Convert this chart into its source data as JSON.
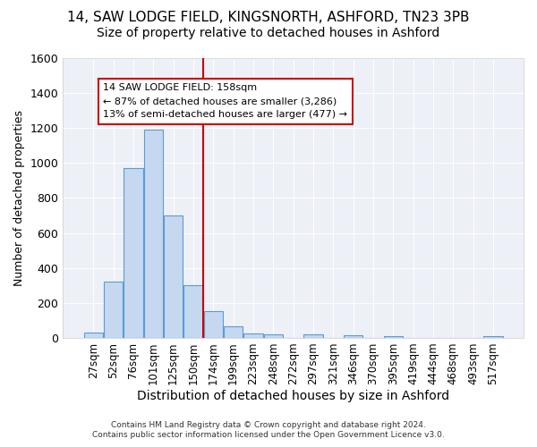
{
  "title1": "14, SAW LODGE FIELD, KINGSNORTH, ASHFORD, TN23 3PB",
  "title2": "Size of property relative to detached houses in Ashford",
  "xlabel": "Distribution of detached houses by size in Ashford",
  "ylabel": "Number of detached properties",
  "footnote_line1": "Contains HM Land Registry data © Crown copyright and database right 2024.",
  "footnote_line2": "Contains public sector information licensed under the Open Government Licence v3.0.",
  "bin_labels": [
    "27sqm",
    "52sqm",
    "76sqm",
    "101sqm",
    "125sqm",
    "150sqm",
    "174sqm",
    "199sqm",
    "223sqm",
    "248sqm",
    "272sqm",
    "297sqm",
    "321sqm",
    "346sqm",
    "370sqm",
    "395sqm",
    "419sqm",
    "444sqm",
    "468sqm",
    "493sqm",
    "517sqm"
  ],
  "bin_values": [
    30,
    320,
    970,
    1190,
    700,
    300,
    155,
    65,
    25,
    20,
    0,
    20,
    0,
    15,
    0,
    10,
    0,
    0,
    0,
    0,
    10
  ],
  "bar_color": "#c5d8f0",
  "bar_edge_color": "#5b9bd5",
  "background_color": "#eef0f8",
  "grid_color": "#ffffff",
  "ylim_max": 1600,
  "yticks": [
    0,
    200,
    400,
    600,
    800,
    1000,
    1200,
    1400,
    1600
  ],
  "red_line_x": 5.5,
  "annotation_text1": "14 SAW LODGE FIELD: 158sqm",
  "annotation_text2": "← 87% of detached houses are smaller (3,286)",
  "annotation_text3": "13% of semi-detached houses are larger (477) →",
  "annotation_color": "#cc0000",
  "title1_fontsize": 11,
  "title2_fontsize": 10,
  "xlabel_fontsize": 10,
  "ylabel_fontsize": 9,
  "tick_fontsize": 8.5
}
